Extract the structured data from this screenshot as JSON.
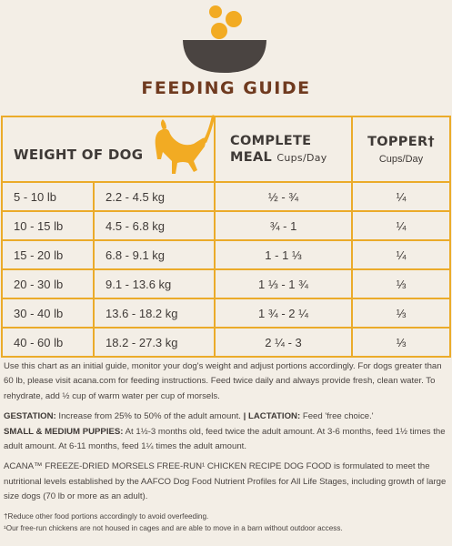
{
  "title": "FEEDING GUIDE",
  "headers": {
    "weight": "WEIGHT OF DOG",
    "meal_line1": "COMPLETE",
    "meal_line2": "MEAL",
    "meal_unit": "Cups/Day",
    "topper": "TOPPER†",
    "topper_unit": "Cups/Day"
  },
  "rows": [
    {
      "lb": "5 - 10 lb",
      "kg": "2.2 - 4.5 kg",
      "meal": "½ - ¾",
      "topper": "¼"
    },
    {
      "lb": "10 - 15 lb",
      "kg": "4.5 - 6.8 kg",
      "meal": "¾ -  1",
      "topper": "¼"
    },
    {
      "lb": "15 - 20 lb",
      "kg": "6.8 - 9.1 kg",
      "meal": "1 - 1 ⅓",
      "topper": "¼"
    },
    {
      "lb": "20 - 30 lb",
      "kg": "9.1 - 13.6 kg",
      "meal": "1 ⅓ - 1 ¾",
      "topper": "⅓"
    },
    {
      "lb": "30 - 40 lb",
      "kg": "13.6 - 18.2 kg",
      "meal": "1 ¾ - 2 ¼",
      "topper": "⅓"
    },
    {
      "lb": "40 - 60 lb",
      "kg": "18.2 - 27.3 kg",
      "meal": "2 ¼ - 3",
      "topper": "⅓"
    }
  ],
  "intro": "Use this chart as an initial guide, monitor your dog's weight and adjust portions accordingly. For dogs greater than 60 lb, please visit acana.com for feeding instructions. Feed twice daily and always provide fresh, clean water. To rehydrate, add ½ cup of warm water per cup of morsels.",
  "gestation_label": "GESTATION:",
  "gestation_text": "Increase from 25% to 50% of the adult amount.",
  "lactation_label": "| LACTATION:",
  "lactation_text": "Feed 'free choice.'",
  "puppies_label": "SMALL & MEDIUM PUPPIES:",
  "puppies_text": "At 1½-3 months old, feed twice the adult amount. At 3-6 months, feed 1½ times the adult amount. At 6-11 months, feed 1¼ times the adult amount.",
  "aafco": "ACANA™ FREEZE-DRIED MORSELS FREE-RUN¹ CHICKEN RECIPE DOG FOOD is formulated to meet the nutritional levels established by the AAFCO Dog Food Nutrient Profiles for All Life Stages, including growth of large size dogs (70 lb or more as an adult).",
  "footnote1": "†Reduce other food portions accordingly to avoid overfeeding.",
  "footnote2": "¹Our free-run chickens are not housed in cages and are able to move in a barn without outdoor access.",
  "colors": {
    "accent": "#ebab2a",
    "title": "#6f3a1f",
    "bowl": "#4a4441"
  }
}
